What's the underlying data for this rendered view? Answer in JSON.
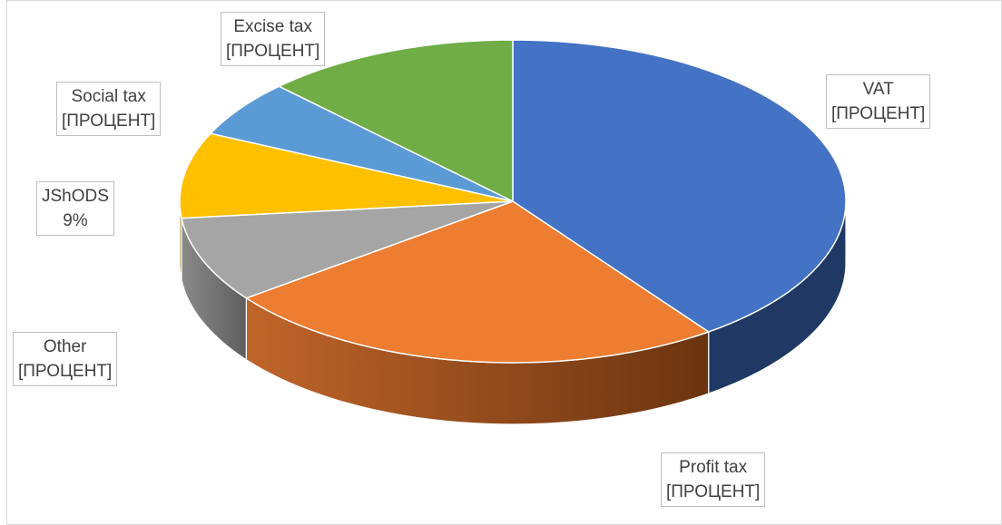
{
  "chart_data": {
    "type": "pie",
    "style": "3d",
    "title": "",
    "legend": "none",
    "slices": [
      {
        "name": "VAT",
        "value": 42,
        "label": "[ПРОЦЕНТ]",
        "color": "#4472C4",
        "side_color": "#1F3864"
      },
      {
        "name": "Profit tax",
        "value": 26,
        "label": "[ПРОЦЕНТ]",
        "color": "#ED7D31",
        "side_color": "#8E4A1B"
      },
      {
        "name": "Other",
        "value": 9,
        "label": "[ПРОЦЕНТ]",
        "color": "#A5A5A5",
        "side_color": "#6E6E6E"
      },
      {
        "name": "JShODS",
        "value": 9,
        "label": "9%",
        "color": "#FFC000",
        "side_color": "#9A7400"
      },
      {
        "name": "Social tax",
        "value": 6,
        "label": "[ПРОЦЕНТ]",
        "color": "#5B9BD5",
        "side_color": "#2E5F8E"
      },
      {
        "name": "Excise tax",
        "value": 13,
        "label": "[ПРОЦЕНТ]",
        "color": "#70AD47",
        "side_color": "#3F6B26"
      }
    ]
  }
}
